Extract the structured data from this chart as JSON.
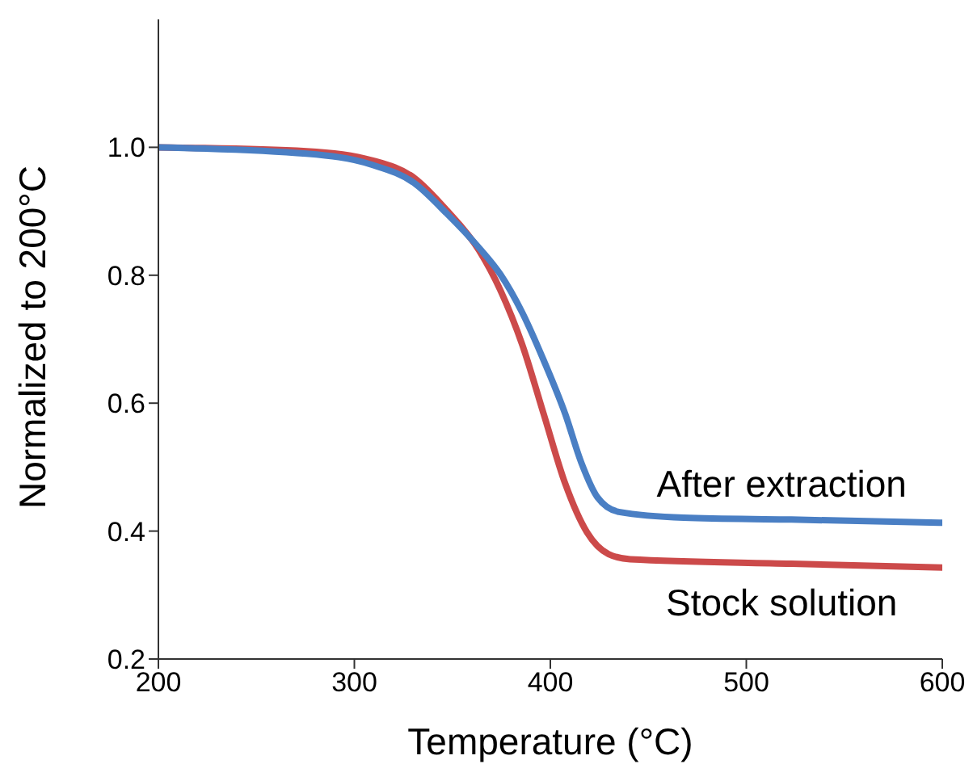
{
  "chart_data": {
    "type": "line",
    "xlabel": "Temperature (°C)",
    "ylabel": "Normalized to 200°C",
    "xlim": [
      200,
      600
    ],
    "xticks": [
      200,
      300,
      400,
      500,
      600
    ],
    "ylim": [
      0.2,
      1.2
    ],
    "yticks": [
      0.2,
      0.4,
      0.6,
      {
        "value": 0.8,
        "label": "0.8"
      },
      {
        "value": 1,
        "label": "1.0"
      }
    ],
    "grid": false,
    "legend": false,
    "marker": "none",
    "line_style": "solid",
    "series": [
      {
        "name": "After extraction",
        "color": "#4a7fc4",
        "x": [
          200,
          275.6,
          308.6,
          330.6,
          347,
          363.6,
          374.6,
          385.6,
          396.6,
          407.6,
          415.8,
          424,
          435,
          468,
          523,
          600
        ],
        "values": [
          1.0,
          0.99,
          0.973,
          0.944,
          0.897,
          0.843,
          0.801,
          0.742,
          0.667,
          0.583,
          0.507,
          0.453,
          0.43,
          0.421,
          0.418,
          0.413
        ]
      },
      {
        "name": "Stock solution",
        "color": "#cc4a4a",
        "x": [
          200,
          275.6,
          308.6,
          330.6,
          347,
          363.6,
          374.6,
          385.6,
          396.6,
          407.6,
          418.7,
          429.7,
          440.7,
          523,
          600
        ],
        "values": [
          1.0,
          0.994,
          0.98,
          0.952,
          0.902,
          0.839,
          0.776,
          0.692,
          0.583,
          0.474,
          0.398,
          0.364,
          0.356,
          0.349,
          0.343
        ]
      }
    ]
  }
}
